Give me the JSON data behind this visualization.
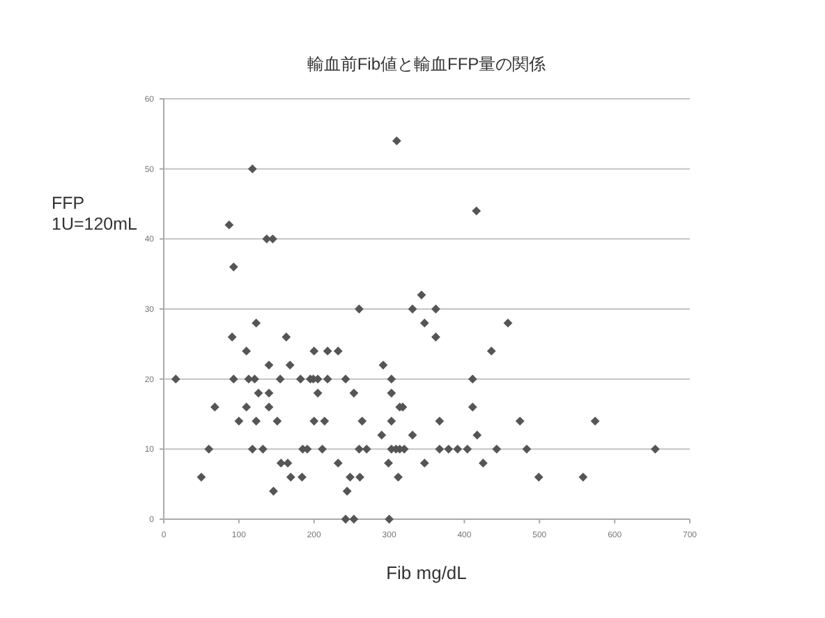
{
  "chart_data": {
    "type": "scatter",
    "title": "輸血前Fib値と輸血FFP量の関係",
    "xlabel": "Fib  mg/dL",
    "ylabel": "FFP\n1U=120mL",
    "xlim": [
      0,
      700
    ],
    "xticks": [
      0,
      100,
      200,
      300,
      400,
      500,
      600,
      700
    ],
    "ylim": [
      0,
      60
    ],
    "yticks": [
      0,
      10,
      20,
      30,
      40,
      50,
      60
    ],
    "grid": "y",
    "marker": "diamond",
    "series": [
      {
        "color": "#555555",
        "x": [
          16,
          50,
          60,
          68,
          87,
          93,
          93,
          91,
          100,
          110,
          110,
          113,
          118,
          118,
          121,
          123,
          123,
          126,
          132,
          137,
          145,
          140,
          140,
          140,
          146,
          151,
          155,
          156,
          163,
          165,
          168,
          169,
          182,
          184,
          185,
          191,
          195,
          199,
          205,
          200,
          205,
          200,
          214,
          211,
          218,
          218,
          232,
          232,
          242,
          244,
          242,
          253,
          248,
          261,
          253,
          260,
          264,
          260,
          270,
          292,
          290,
          299,
          300,
          303,
          303,
          303,
          303,
          309,
          314,
          320,
          314,
          318,
          312,
          310,
          331,
          331,
          343,
          347,
          347,
          362,
          362,
          367,
          367,
          379,
          391,
          404,
          416,
          411,
          411,
          417,
          425,
          436,
          443,
          458,
          474,
          483,
          499,
          574,
          654,
          558
        ],
        "values": [
          20,
          6,
          10,
          16,
          42,
          20,
          36,
          26,
          14,
          24,
          16,
          20,
          50,
          10,
          20,
          14,
          28,
          18,
          10,
          40,
          40,
          18,
          16,
          22,
          4,
          14,
          20,
          8,
          26,
          8,
          22,
          6,
          20,
          6,
          10,
          10,
          20,
          20,
          20,
          24,
          18,
          14,
          14,
          10,
          24,
          20,
          24,
          8,
          20,
          4,
          0,
          0,
          6,
          6,
          18,
          30,
          14,
          10,
          10,
          22,
          12,
          8,
          0,
          20,
          18,
          14,
          10,
          10,
          10,
          10,
          16,
          16,
          6,
          54,
          30,
          12,
          32,
          28,
          8,
          30,
          26,
          14,
          10,
          10,
          10,
          10,
          44,
          20,
          16,
          12,
          8,
          24,
          10,
          28,
          14,
          10,
          6,
          14,
          10,
          6
        ]
      }
    ]
  }
}
